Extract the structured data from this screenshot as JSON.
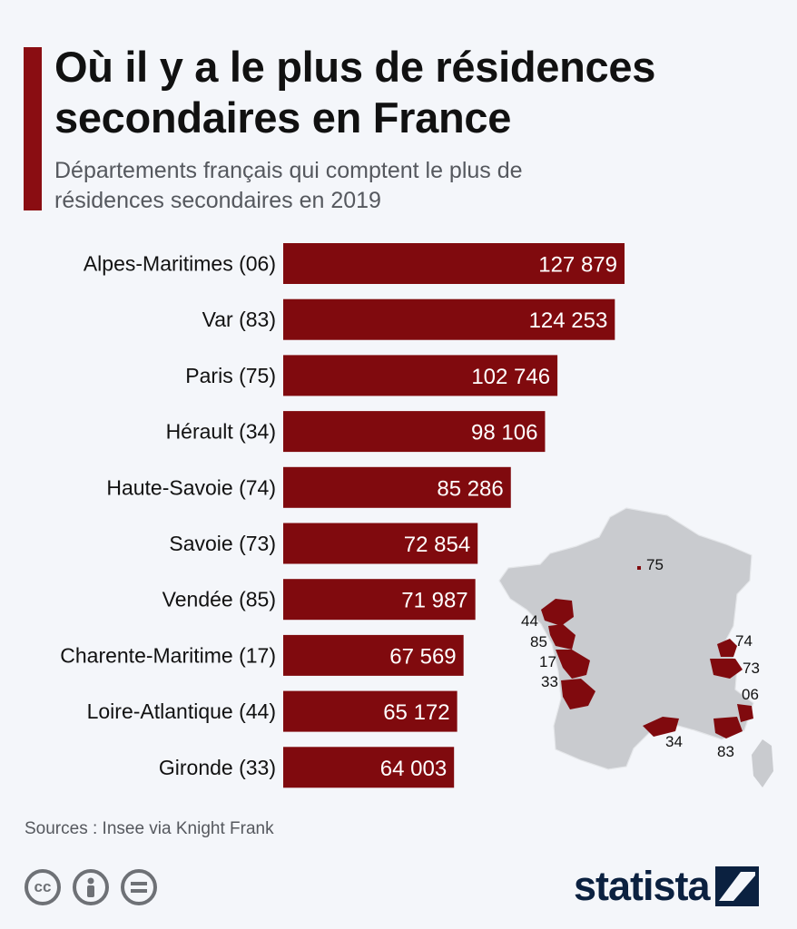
{
  "title": "Où il y a le plus de résidences secondaires en France",
  "subtitle": "Départements français qui comptent le plus de résidences secondaires en 2019",
  "source": "Sources : Insee via Knight Frank",
  "brand": "statista",
  "colors": {
    "bar": "#800a0e",
    "accent": "#8a0d12",
    "map_land": "#c9cbcf",
    "map_highlight": "#800a0e",
    "brand": "#0b2140"
  },
  "icons": [
    "creative-commons-icon",
    "attribution-icon",
    "no-derivatives-icon",
    "statista-logo-icon"
  ],
  "chart_data": {
    "type": "bar",
    "orientation": "horizontal",
    "categories": [
      "Alpes-Maritimes (06)",
      "Var (83)",
      "Paris (75)",
      "Hérault (34)",
      "Haute-Savoie (74)",
      "Savoie (73)",
      "Vendée (85)",
      "Charente-Maritime (17)",
      "Loire-Atlantique (44)",
      "Gironde (33)"
    ],
    "values": [
      127879,
      124253,
      102746,
      98106,
      85286,
      72854,
      71987,
      67569,
      65172,
      64003
    ],
    "value_labels": [
      "127 879",
      "124 253",
      "102 746",
      "98 106",
      "85 286",
      "72 854",
      "71 987",
      "67 569",
      "65 172",
      "64 003"
    ],
    "xlim": [
      0,
      130000
    ],
    "grid": false,
    "legend": "none"
  },
  "map": {
    "labels": [
      "75",
      "44",
      "85",
      "17",
      "33",
      "74",
      "73",
      "06",
      "34",
      "83"
    ]
  }
}
